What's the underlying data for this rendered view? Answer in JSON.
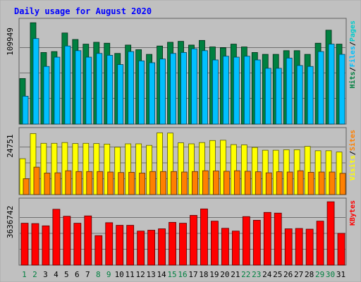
{
  "chart_data": [
    {
      "type": "bar",
      "title": "Daily usage for August 2020",
      "categories": [
        "1",
        "2",
        "3",
        "4",
        "5",
        "6",
        "7",
        "8",
        "9",
        "10",
        "11",
        "12",
        "13",
        "14",
        "15",
        "16",
        "17",
        "18",
        "19",
        "20",
        "21",
        "22",
        "23",
        "24",
        "25",
        "26",
        "27",
        "28",
        "29",
        "30",
        "31"
      ],
      "ylim": [
        0,
        109949
      ],
      "y_tick_label": "109949",
      "legend": [
        "Pages",
        "Files",
        "Hits"
      ],
      "legend_colors": [
        "#00cccc",
        "#00c0ff",
        "#008040"
      ],
      "series": [
        {
          "name": "Hits",
          "color": "#008040",
          "values": [
            49000,
            109000,
            77000,
            78000,
            98000,
            91000,
            86000,
            88000,
            87000,
            76000,
            85000,
            80000,
            75000,
            84000,
            88000,
            89000,
            85000,
            90000,
            83000,
            82000,
            86000,
            83000,
            77000,
            75000,
            75000,
            79000,
            79000,
            75000,
            87000,
            101000,
            86000
          ]
        },
        {
          "name": "Files",
          "color": "#00c0ff",
          "values": [
            30000,
            92000,
            62000,
            72000,
            84000,
            79000,
            72000,
            76000,
            74000,
            64000,
            78000,
            68000,
            66000,
            70000,
            76000,
            77000,
            81000,
            79000,
            69000,
            73000,
            72000,
            73000,
            69000,
            60000,
            60000,
            71000,
            63000,
            62000,
            78000,
            86000,
            75000
          ]
        },
        {
          "name": "Pages",
          "color": "#00cccc",
          "values": [
            0,
            0,
            0,
            0,
            0,
            0,
            0,
            0,
            0,
            0,
            0,
            0,
            0,
            0,
            0,
            0,
            0,
            0,
            0,
            0,
            0,
            0,
            0,
            0,
            0,
            0,
            0,
            0,
            0,
            0,
            0
          ]
        }
      ]
    },
    {
      "type": "bar",
      "ylim": [
        0,
        24751
      ],
      "y_tick_label": "24751",
      "legend": [
        "Sites",
        "Visits"
      ],
      "legend_colors": [
        "#ff8000",
        "#ffff00"
      ],
      "series": [
        {
          "name": "Visits",
          "color": "#ffff00",
          "values": [
            14000,
            23800,
            20000,
            20000,
            20300,
            19900,
            20000,
            19900,
            19700,
            18500,
            19800,
            19800,
            19200,
            24100,
            24000,
            20200,
            19800,
            20300,
            21100,
            21200,
            19500,
            19400,
            18400,
            17300,
            17300,
            17500,
            17500,
            18800,
            17100,
            17100,
            16600
          ]
        },
        {
          "name": "Sites",
          "color": "#ff8000",
          "values": [
            6200,
            10700,
            8400,
            8500,
            9300,
            9000,
            9000,
            9000,
            8800,
            8600,
            8700,
            8400,
            9000,
            9000,
            9000,
            8800,
            9000,
            9300,
            9200,
            9100,
            9300,
            9100,
            8900,
            8500,
            8900,
            8800,
            9300,
            8700,
            8800,
            8800,
            8300
          ]
        }
      ]
    },
    {
      "type": "bar",
      "ylim": [
        0,
        3636742
      ],
      "y_tick_label": "3636742",
      "legend": [
        "KBytes"
      ],
      "legend_colors": [
        "#ff0000"
      ],
      "series": [
        {
          "name": "KBytes",
          "color": "#ff0000",
          "values": [
            2400000,
            2380000,
            2250000,
            3200000,
            2800000,
            2400000,
            2820000,
            1690000,
            2430000,
            2280000,
            2280000,
            1950000,
            2000000,
            2080000,
            2450000,
            2400000,
            2850000,
            3220000,
            2520000,
            2110000,
            1950000,
            2780000,
            2570000,
            3020000,
            2980000,
            2080000,
            2100000,
            2060000,
            2520000,
            3630000,
            1820000
          ]
        }
      ]
    }
  ],
  "x_label_colors": [
    "#008040",
    "#008040",
    "#000000",
    "#000000",
    "#000000",
    "#000000",
    "#000000",
    "#008040",
    "#008040",
    "#000000",
    "#000000",
    "#000000",
    "#000000",
    "#000000",
    "#008040",
    "#008040",
    "#000000",
    "#000000",
    "#000000",
    "#000000",
    "#000000",
    "#008040",
    "#008040",
    "#000000",
    "#000000",
    "#000000",
    "#000000",
    "#000000",
    "#008040",
    "#008040",
    "#000000"
  ],
  "legend_separator": "/"
}
